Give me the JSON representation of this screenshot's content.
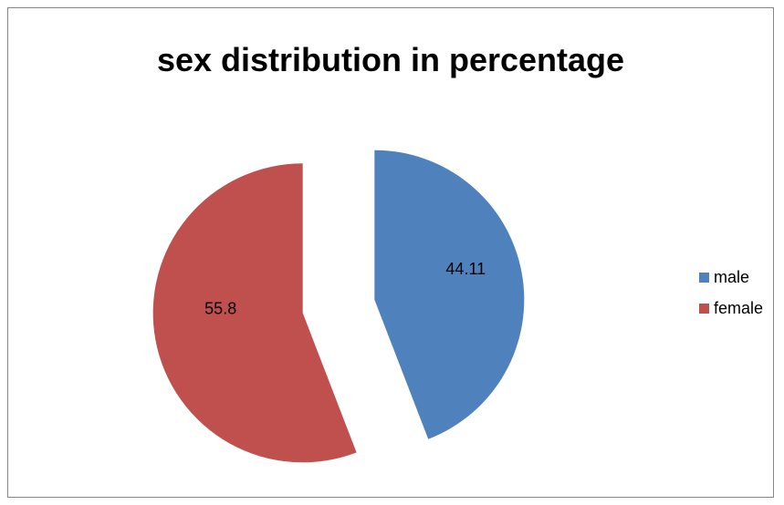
{
  "chart_data": {
    "type": "pie",
    "title": "sex distribution in percentage",
    "categories": [
      "male",
      "female"
    ],
    "values": [
      44.11,
      55.8
    ],
    "data_labels": [
      "44.11",
      "55.8"
    ],
    "colors": [
      "#4F81BD",
      "#C0504D"
    ],
    "exploded": true,
    "start_angle": "12 o'clock, clockwise",
    "legend": "right"
  }
}
